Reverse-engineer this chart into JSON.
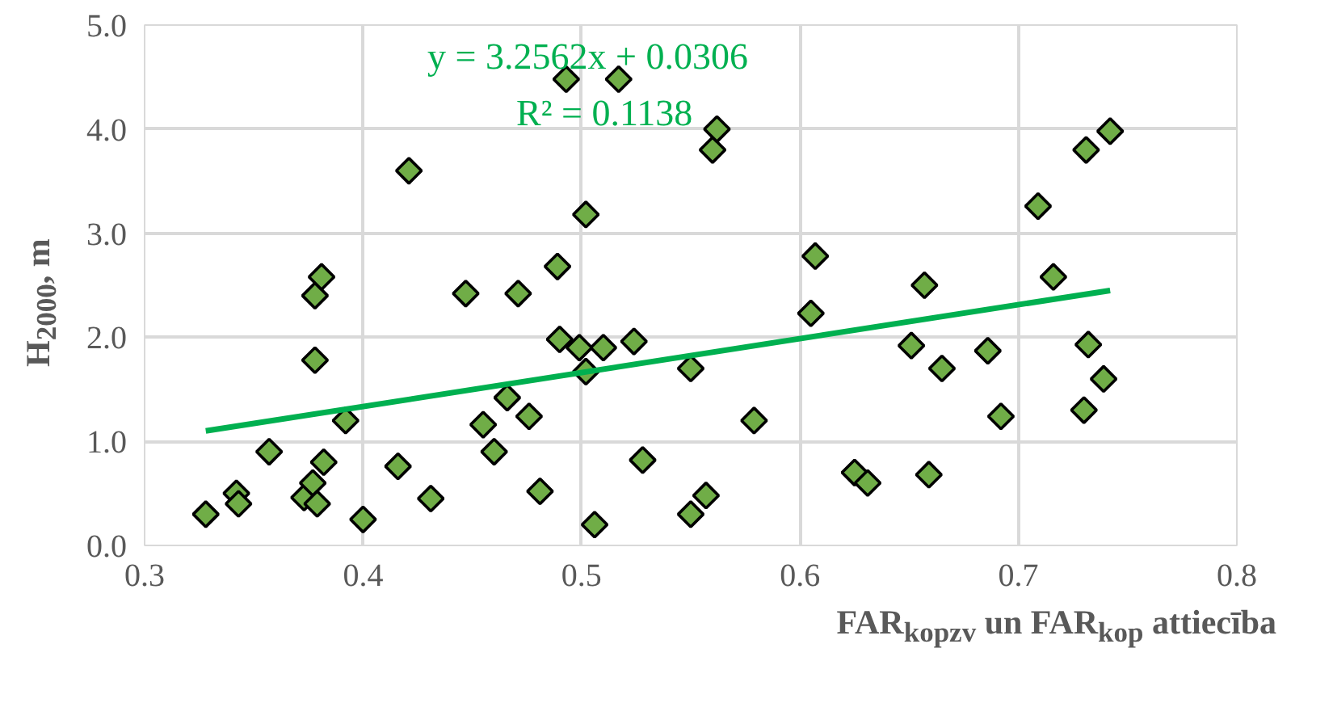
{
  "chart_data": {
    "type": "scatter",
    "xlabel": "FAR$_{kopzv}$ un FAR$_{kop}$ attiecība",
    "ylabel": "H$_{2000}$, m",
    "annotations": [
      "y = 3.2562x + 0.0306",
      "R² = 0.1138"
    ],
    "xlim": [
      0.3,
      0.8
    ],
    "xticks": [
      0.3,
      0.4,
      0.5,
      0.6,
      0.7,
      0.8
    ],
    "ylim": [
      0,
      5
    ],
    "yticks": [
      {
        "value": 0,
        "label": "0.0"
      },
      {
        "value": 1,
        "label": "1.0"
      },
      {
        "value": 2,
        "label": "2.0"
      },
      {
        "value": 3,
        "label": "3.0"
      },
      {
        "value": 4,
        "label": "4.0"
      },
      {
        "value": 5,
        "label": "5.0"
      }
    ],
    "grid": true,
    "series": [
      {
        "marker": "diamond",
        "color": "#70ad47",
        "x": [
          0.328,
          0.342,
          0.343,
          0.357,
          0.373,
          0.377,
          0.378,
          0.378,
          0.379,
          0.381,
          0.382,
          0.392,
          0.4,
          0.416,
          0.421,
          0.431,
          0.447,
          0.455,
          0.46,
          0.466,
          0.471,
          0.476,
          0.481,
          0.489,
          0.49,
          0.493,
          0.499,
          0.502,
          0.502,
          0.506,
          0.51,
          0.517,
          0.524,
          0.528,
          0.55,
          0.55,
          0.557,
          0.56,
          0.562,
          0.579,
          0.605,
          0.607,
          0.625,
          0.631,
          0.651,
          0.657,
          0.659,
          0.665,
          0.686,
          0.692,
          0.709,
          0.716,
          0.73,
          0.731,
          0.732,
          0.739,
          0.742
        ],
        "values": [
          0.3,
          0.5,
          0.4,
          0.9,
          0.46,
          0.6,
          2.4,
          1.78,
          0.4,
          2.58,
          0.8,
          1.2,
          0.25,
          0.76,
          3.6,
          0.45,
          2.42,
          1.16,
          0.9,
          1.42,
          2.42,
          1.24,
          0.52,
          2.68,
          1.98,
          4.48,
          1.9,
          1.67,
          3.18,
          0.2,
          1.9,
          4.48,
          1.96,
          0.82,
          1.7,
          0.3,
          0.48,
          3.8,
          4.0,
          1.2,
          2.23,
          2.78,
          0.7,
          0.6,
          1.92,
          2.5,
          0.68,
          1.7,
          1.87,
          1.24,
          3.26,
          2.58,
          1.3,
          3.8,
          1.93,
          1.6,
          3.98
        ]
      },
      {
        "type": "line",
        "marker": "none",
        "color": "#00b050",
        "x": [
          0.328,
          0.742
        ],
        "values": [
          1.1,
          2.45
        ]
      }
    ]
  }
}
